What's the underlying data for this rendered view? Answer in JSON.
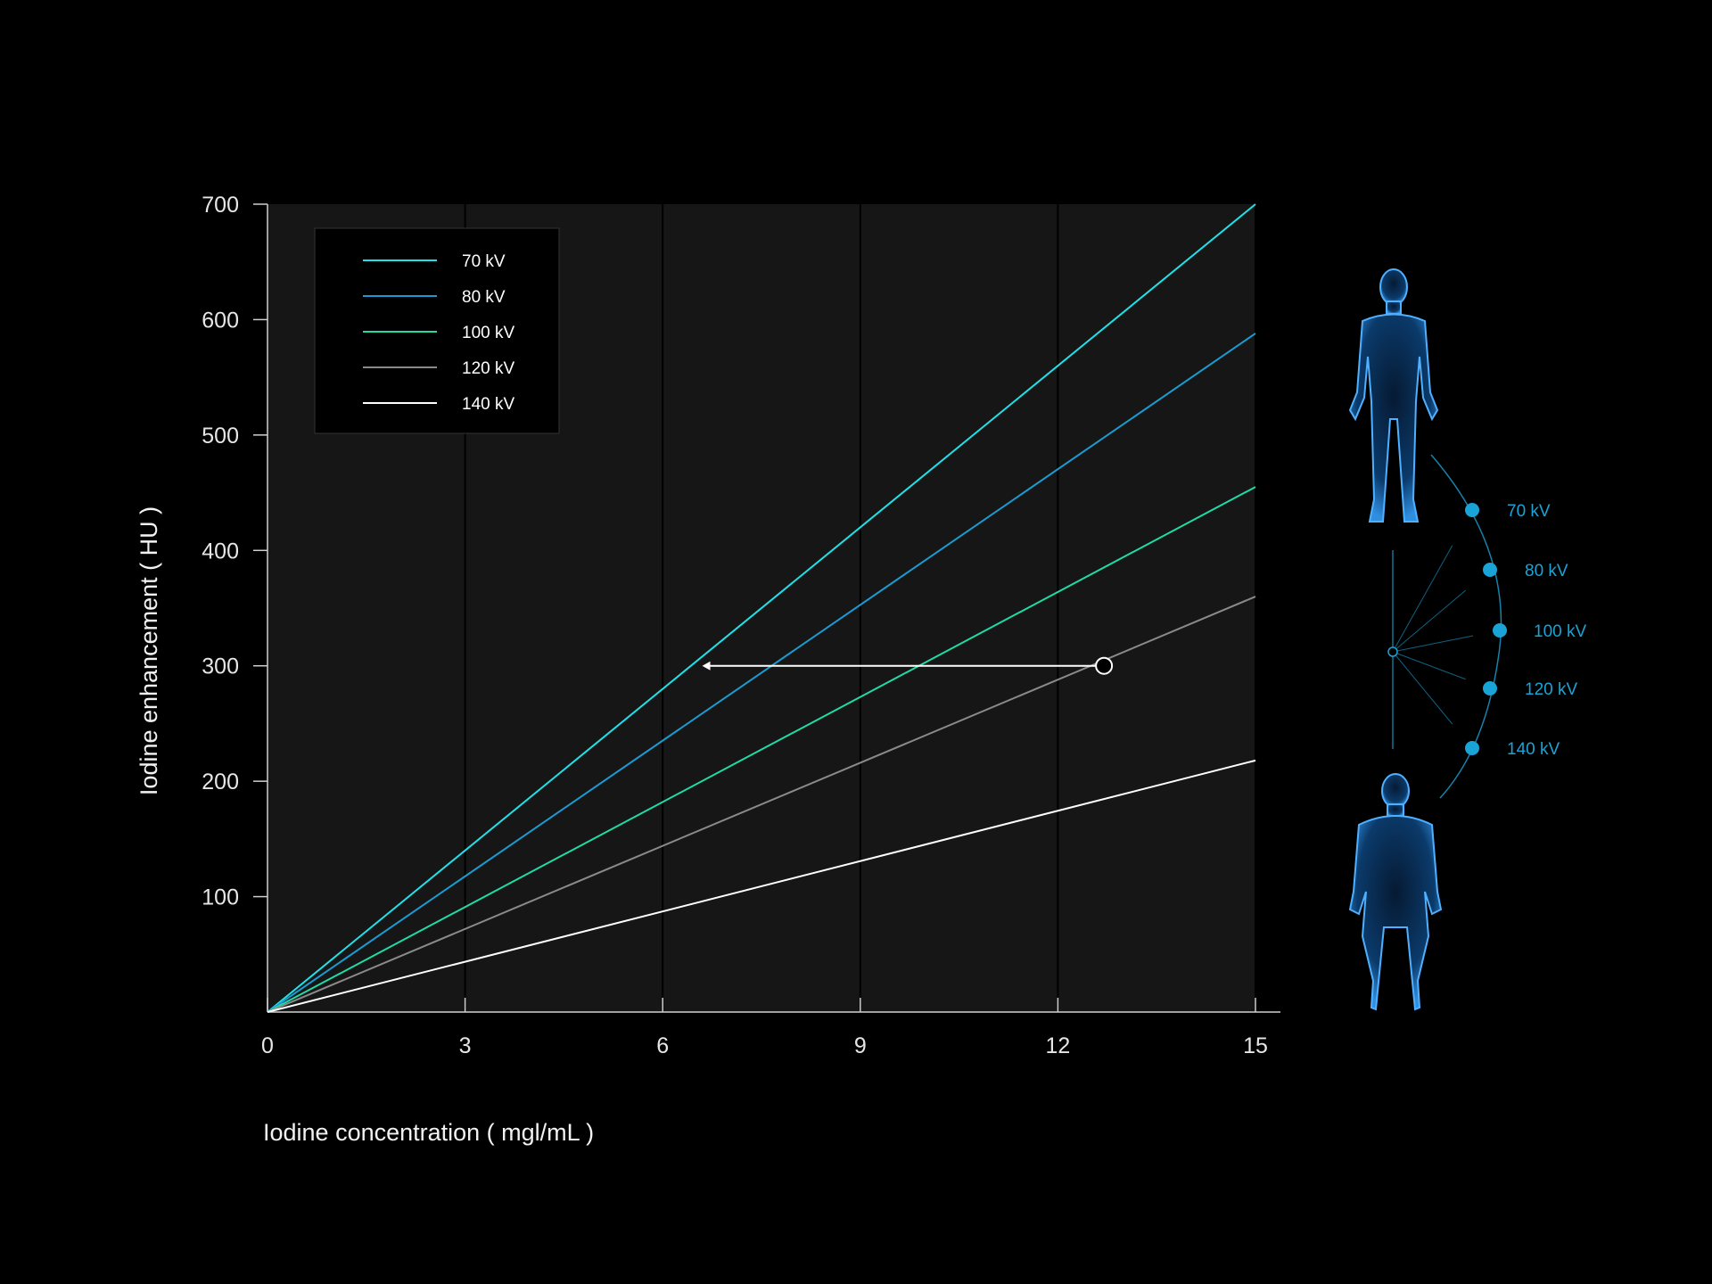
{
  "chart_data": {
    "type": "line",
    "title": "",
    "xlabel": "Iodine concentration ( mgl/mL )",
    "ylabel": "Iodine enhancement ( HU )",
    "xlim": [
      0,
      15
    ],
    "ylim": [
      0,
      700
    ],
    "x_ticks": [
      0,
      3,
      6,
      9,
      12,
      15
    ],
    "y_ticks": [
      100,
      200,
      300,
      400,
      500,
      600,
      700
    ],
    "grid": "vertical",
    "legend_position": "top-left",
    "series": [
      {
        "name": "70 kV",
        "color": "#22e0e8",
        "x": [
          0,
          15
        ],
        "y": [
          0,
          700
        ]
      },
      {
        "name": "80 kV",
        "color": "#1a9bd1",
        "x": [
          0,
          15
        ],
        "y": [
          0,
          588
        ]
      },
      {
        "name": "100 kV",
        "color": "#1fdca6",
        "x": [
          0,
          15
        ],
        "y": [
          0,
          455
        ]
      },
      {
        "name": "120 kV",
        "color": "#8a8a8a",
        "x": [
          0,
          15
        ],
        "y": [
          0,
          360
        ]
      },
      {
        "name": "140 kV",
        "color": "#ffffff",
        "x": [
          0,
          15
        ],
        "y": [
          0,
          218
        ]
      }
    ],
    "annotation": {
      "point": {
        "x": 12.7,
        "y": 300
      },
      "arrow_to": {
        "x": 6.6,
        "y": 300
      }
    }
  },
  "kv_selector": {
    "accent": "#1aa3d6",
    "items": [
      "70 kV",
      "80 kV",
      "100 kV",
      "120 kV",
      "140 kV"
    ],
    "figures": [
      "slim-body-icon",
      "large-body-icon"
    ]
  }
}
